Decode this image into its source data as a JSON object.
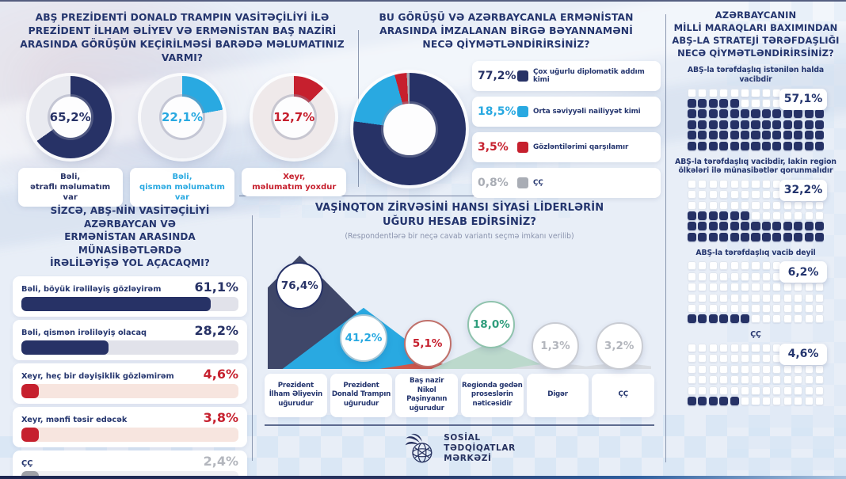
{
  "chart_data": [
    {
      "id": "meeting-awareness",
      "type": "pie",
      "style": "donut-trio",
      "title": "ABŞ PREZİDENTİ DONALD TRAMPIN VASİTƏÇİLİYİ İLƏ\nPREZİDENT İLHAM ƏLİYEV VƏ ERMƏNİSTAN BAŞ NAZİRİ\nARASINDA GÖRÜŞÜN KEÇİRİLMƏSİ BARƏDƏ MƏLUMATINIZ VARMI?",
      "categories": [
        "Bəli, ətraflı məlumatım var",
        "Bəli, qismən məlumatım var",
        "Xeyr, məlumatım yoxdur"
      ],
      "values": [
        65.2,
        22.1,
        12.7
      ],
      "items": [
        {
          "value": 65.2,
          "value_label": "65,2%",
          "label": "Bəli,\nətraflı məlumatım var",
          "color": "#273266",
          "track": "#e9eaf0"
        },
        {
          "value": 22.1,
          "value_label": "22,1%",
          "label": "Bəli,\nqismən məlumatım var",
          "color": "#29a9e1",
          "track": "#e9eaf0"
        },
        {
          "value": 12.7,
          "value_label": "12,7%",
          "label": "Xeyr,\nməlumatım yoxdur",
          "color": "#c6202e",
          "track": "#efe9ea"
        }
      ]
    },
    {
      "id": "declaration-evaluation",
      "type": "pie",
      "style": "donut-with-legend",
      "title": "BU GÖRÜŞÜ VƏ AZƏRBAYCANLA ERMƏNİSTAN\nARASINDA İMZALANAN BİRGƏ BƏYANNAMƏNİ\nNECƏ QİYMƏTLƏNDİRİRSİNİZ?",
      "legend_position": "right",
      "segments": [
        {
          "value": 77.2,
          "value_label": "77,2%",
          "label": "Çox uğurlu diplomatik addım kimi",
          "color": "#273266"
        },
        {
          "value": 18.5,
          "value_label": "18,5%",
          "label": "Orta səviyyəli nailiyyət kimi",
          "color": "#29a9e1"
        },
        {
          "value": 3.5,
          "value_label": "3,5%",
          "label": "Gözləntilərimi qarşılamır",
          "color": "#c6202e"
        },
        {
          "value": 0.8,
          "value_label": "0,8%",
          "label": "ÇÇ",
          "color": "#a9adb5"
        }
      ]
    },
    {
      "id": "progress-expectation",
      "type": "bar",
      "orientation": "horizontal",
      "title": "SİZCƏ, ABŞ-NİN VASİTƏÇİLİYİ AZƏRBAYCAN VƏ\nERMƏNİSTAN ARASINDA MÜNASİBƏTLƏRDƏ\nİRƏLİLƏYİŞƏ YOL AÇACAQMI?",
      "scale_max": 70,
      "bars": [
        {
          "value": 61.1,
          "value_label": "61,1%",
          "label": "Bəli, böyük irəliləyiş gözləyirəm",
          "fill": "#273266",
          "track": "#e1e2ea",
          "value_color": "#273266"
        },
        {
          "value": 28.2,
          "value_label": "28,2%",
          "label": "Bəli, qismən irəliləyiş olacaq",
          "fill": "#273266",
          "track": "#e1e2ea",
          "value_color": "#273266"
        },
        {
          "value": 4.6,
          "value_label": "4,6%",
          "label": "Xeyr, heç bir dəyişiklik gözləmirəm",
          "fill": "#c6202e",
          "track": "#f7e5df",
          "value_color": "#c6202e"
        },
        {
          "value": 3.8,
          "value_label": "3,8%",
          "label": "Xeyr, mənfi təsir edəcək",
          "fill": "#c6202e",
          "track": "#f7e5df",
          "value_color": "#c6202e"
        },
        {
          "value": 2.4,
          "value_label": "2,4%",
          "label": "ÇÇ",
          "fill": "#9fa1a8",
          "track": "#efeff3",
          "value_color": "#b3b6bd"
        }
      ]
    },
    {
      "id": "summit-success",
      "type": "area",
      "style": "mountain-peaks",
      "title": "VAŞİNQTON ZİRVƏSİNİ HANSI SİYASİ LİDERLƏRİN\nUĞURU HESAB EDİRSİNİZ?",
      "subtitle": "(Respondentlərə bir neçə cavab variantı seçmə imkanı verilib)",
      "ymax": 80,
      "items": [
        {
          "value": 76.4,
          "value_label": "76,4%",
          "label": "Prezident\nİlham Əliyevin\nuğurudur",
          "fill": "#3f4769",
          "text_color": "#273266",
          "ring_color": "#273266"
        },
        {
          "value": 41.2,
          "value_label": "41,2%",
          "label": "Prezident\nDonald Trampın\nuğurudur",
          "fill": "#29a9e1",
          "text_color": "#29a9e1",
          "ring_color": "#abc8d6"
        },
        {
          "value": 5.1,
          "value_label": "5,1%",
          "label": "Baş nazir\nNikol Paşinyanın\nuğurudur",
          "fill": "#d0584b",
          "text_color": "#c6202e",
          "ring_color": "#c0706a"
        },
        {
          "value": 18.0,
          "value_label": "18,0%",
          "label": "Regionda gedən\nproseslərin\nnəticəsidir",
          "fill": "#bcd9cc",
          "text_color": "#2f9d7c",
          "ring_color": "#8fc3ad"
        },
        {
          "value": 1.3,
          "value_label": "1,3%",
          "label": "Digər",
          "fill": "#d8dce2",
          "text_color": "#b3b6bd",
          "ring_color": "#c9ccd3"
        },
        {
          "value": 3.2,
          "value_label": "3,2%",
          "label": "ÇÇ",
          "fill": "#d8dce2",
          "text_color": "#b3b6bd",
          "ring_color": "#c9ccd3"
        }
      ]
    },
    {
      "id": "us-partnership",
      "type": "heatmap",
      "style": "waffle",
      "title": "AZƏRBAYCANIN\nMİLLİ MARAQLARI BAXIMINDAN\nABŞ-LA STRATEJİ TƏRƏFDAŞLIĞI\nNECƏ QİYMƏTLƏNDİRİRSİNİZ?",
      "grid": {
        "columns": 13,
        "rows": 6
      },
      "cell_color": "#263266",
      "cell_empty_color": "#ffffff",
      "groups": [
        {
          "value": 57.1,
          "value_label": "57,1%",
          "label": "ABŞ-la tərəfdaşlıq istənilən halda vacibdir"
        },
        {
          "value": 32.2,
          "value_label": "32,2%",
          "label": "ABŞ-la tərəfdaşlıq vacibdir, lakin region ölkələri ilə münasibətlər qorunmalıdır"
        },
        {
          "value": 6.2,
          "value_label": "6,2%",
          "label": "ABŞ-la tərəfdaşlıq vacib deyil"
        },
        {
          "value": 4.6,
          "value_label": "4,6%",
          "label": "ÇÇ"
        }
      ]
    }
  ],
  "footer": {
    "logo_lines": [
      "SOSİAL",
      "TƏDQİQATLAR",
      "MƏRKƏZİ"
    ]
  },
  "theme": {
    "navy": "#273266",
    "blue": "#29a9e1",
    "red": "#c6202e",
    "gray": "#a9adb5",
    "green": "#2f9d7c",
    "background": "#e8eef7"
  }
}
